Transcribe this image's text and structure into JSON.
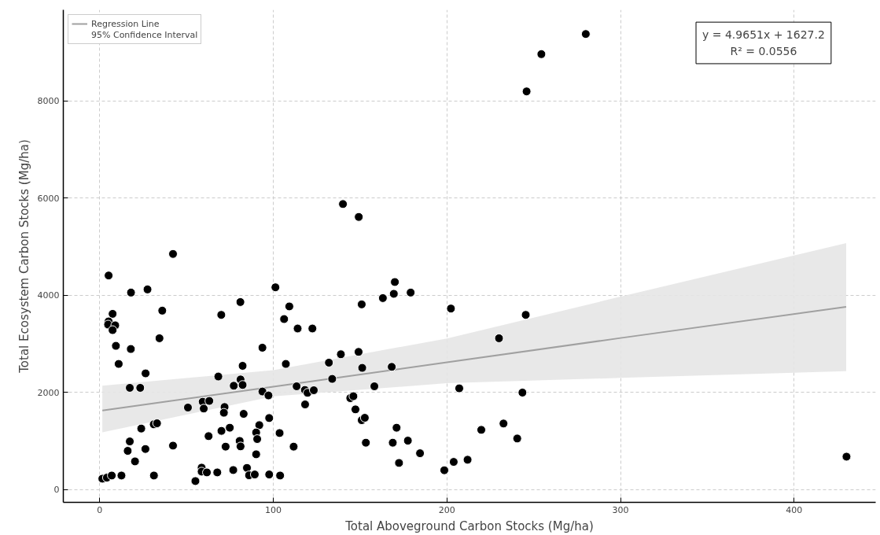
{
  "chart_data": {
    "type": "scatter",
    "xlabel": "Total Aboveground Carbon Stocks (Mg/ha)",
    "ylabel": "Total Ecosystem Carbon Stocks (Mg/ha)",
    "xlim": [
      -21,
      447
    ],
    "ylim": [
      -260,
      9870
    ],
    "xticks": [
      0,
      100,
      200,
      300,
      400
    ],
    "yticks": [
      0,
      2000,
      4000,
      6000,
      8000
    ],
    "grid": true,
    "legend": "top left",
    "annotations": [
      "y = 4.9651x + 1627.2",
      "R² = 0.0556",
      "95% Confidence Interval"
    ],
    "series": [
      {
        "type": "line",
        "name": "Regression Line",
        "color": "#a0a0a0",
        "x": [
          1.5,
          100,
          200,
          300,
          430
        ],
        "values": [
          1630,
          2120,
          2620,
          3120,
          3760
        ],
        "lower": [
          1180,
          1920,
          2190,
          2300,
          2440
        ],
        "upper": [
          2140,
          2460,
          3110,
          3970,
          5070
        ]
      },
      {
        "color": "#000000",
        "marker": "circle",
        "x": [
          5.1,
          42.2,
          18,
          27.5,
          81,
          7.4,
          5.1,
          4.8,
          8.9,
          7.4,
          36,
          70,
          34.4,
          9.3,
          17.9,
          10.9,
          26.4,
          93.7,
          82.3,
          68.3,
          81.1,
          77.2,
          82.3,
          17.3,
          23.3,
          93.7,
          50.8,
          59.3,
          63.1,
          59.9,
          71.9,
          71.5,
          82.9,
          31.1,
          33,
          23.9,
          70.1,
          74.9,
          91.9,
          90.1,
          90.7,
          62.7,
          17.3,
          16.1,
          26.3,
          42.2,
          20.3,
          72.5,
          80.6,
          81.1,
          90.1,
          1.5,
          4.1,
          6.9,
          12.5,
          31.2,
          58.7,
          58.7,
          61.7,
          55.1,
          67.7,
          76.9,
          84.8,
          86,
          89.3,
          101.2,
          109.2,
          106.2,
          114,
          122.5,
          150.9,
          107.2,
          132,
          138.9,
          149.1,
          151.2,
          133.9,
          113.4,
          118.2,
          119.7,
          123.3,
          97.2,
          118.3,
          144.3,
          146.1,
          147.3,
          150.9,
          152.7,
          97.6,
          103.6,
          111.7,
          153.3,
          97.6,
          103.9,
          170,
          169.4,
          179.1,
          163.1,
          202.3,
          245.4,
          230,
          168.2,
          158.2,
          207.1,
          243.5,
          171,
          168.8,
          177.5,
          184.5,
          172.4,
          198.5,
          203.9,
          211.9,
          219.8,
          232.6,
          240.5,
          140.1,
          149.2,
          254.4,
          245.9,
          280,
          430.2
        ],
        "values": [
          4406,
          4849,
          4055,
          4120,
          3860,
          3617,
          3462,
          3397,
          3381,
          3283,
          3683,
          3596,
          3115,
          2959,
          2894,
          2587,
          2393,
          2921,
          2548,
          2328,
          2268,
          2138,
          2155,
          2095,
          2095,
          2020,
          1690,
          1809,
          1826,
          1669,
          1701,
          1583,
          1560,
          1345,
          1366,
          1258,
          1210,
          1275,
          1328,
          1178,
          1042,
          1102,
          993,
          799,
          837,
          907,
          583,
          886,
          1004,
          891,
          729,
          227,
          248,
          292,
          292,
          292,
          454,
          373,
          356,
          178,
          356,
          405,
          448,
          297,
          313,
          4163,
          3770,
          3510,
          3316,
          3316,
          3812,
          2587,
          2613,
          2786,
          2835,
          2506,
          2279,
          2127,
          2052,
          1993,
          2046,
          1939,
          1754,
          1884,
          1923,
          1652,
          1430,
          1479,
          1474,
          1166,
          886,
          967,
          313,
          292,
          4272,
          4029,
          4055,
          3941,
          3726,
          3596,
          3115,
          2527,
          2127,
          2085,
          1998,
          1275,
          967,
          1009,
          750,
          551,
          400,
          572,
          616,
          1231,
          1361,
          1053,
          5876,
          5610,
          8959,
          8192,
          9373,
          680
        ]
      }
    ]
  }
}
